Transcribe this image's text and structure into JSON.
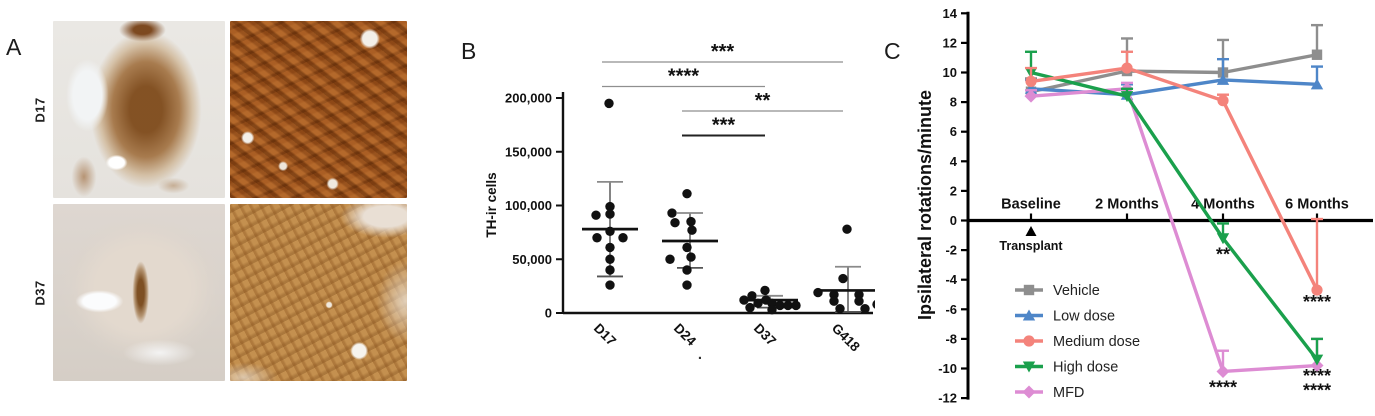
{
  "panels": {
    "a": {
      "label": "A",
      "rows": [
        {
          "label": "D17"
        },
        {
          "label": "D37"
        }
      ]
    },
    "b": {
      "label": "B"
    },
    "c": {
      "label": "C"
    }
  },
  "chart_data": [
    {
      "panel": "B",
      "type": "scatter",
      "title": "",
      "ylabel": "TH-ir cells",
      "ylim": [
        0,
        200000
      ],
      "yticks": [
        0,
        50000,
        100000,
        150000,
        200000
      ],
      "ytick_labels": [
        "0",
        "50,000",
        "100,000",
        "150,000",
        "200,000"
      ],
      "categories": [
        "D17",
        "D24",
        "D37",
        "G418"
      ],
      "groups": [
        {
          "name": "D17",
          "mean": 78000,
          "err_low": 34000,
          "err_high": 122000,
          "points": [
            [
              -1,
              195000
            ],
            [
              0,
              99000
            ],
            [
              0,
              92000
            ],
            [
              -14,
              91000
            ],
            [
              0,
              76000
            ],
            [
              13,
              70000
            ],
            [
              -13,
              70000
            ],
            [
              0,
              61000
            ],
            [
              0,
              50000
            ],
            [
              0,
              40000
            ],
            [
              0,
              26000
            ]
          ]
        },
        {
          "name": "D24",
          "mean": 67000,
          "err_low": 42000,
          "err_high": 93000,
          "points": [
            [
              -3,
              111000
            ],
            [
              -18,
              93000
            ],
            [
              -15,
              84000
            ],
            [
              1,
              85000
            ],
            [
              2,
              77000
            ],
            [
              -3,
              61000
            ],
            [
              1,
              52000
            ],
            [
              -20,
              50000
            ],
            [
              -3,
              40000
            ],
            [
              -3,
              26000
            ]
          ]
        },
        {
          "name": "D37",
          "mean": 12000,
          "err_low": 5000,
          "err_high": 16000,
          "points": [
            [
              -5,
              21000
            ],
            [
              -18,
              16000
            ],
            [
              -26,
              12000
            ],
            [
              -12,
              9000
            ],
            [
              -4,
              12000
            ],
            [
              2,
              9000
            ],
            [
              10,
              7000
            ],
            [
              18,
              7000
            ],
            [
              26,
              7000
            ],
            [
              -20,
              5000
            ],
            [
              2,
              3000
            ]
          ]
        },
        {
          "name": "G418",
          "mean": 21000,
          "err_low": 1000,
          "err_high": 43000,
          "points": [
            [
              -1,
              78000
            ],
            [
              -5,
              32000
            ],
            [
              -30,
              19000
            ],
            [
              -14,
              17000
            ],
            [
              -14,
              11000
            ],
            [
              11,
              17000
            ],
            [
              11,
              11000
            ],
            [
              29,
              8000
            ],
            [
              -8,
              4000
            ],
            [
              17,
              4000
            ]
          ]
        }
      ],
      "significance": [
        {
          "from": 0,
          "to": 3,
          "label": "***"
        },
        {
          "from": 0,
          "to": 2,
          "label": "****"
        },
        {
          "from": 1,
          "to": 3,
          "label": "**"
        },
        {
          "from": 1,
          "to": 2,
          "label": "***"
        }
      ],
      "stray_mark": "."
    },
    {
      "panel": "C",
      "type": "line",
      "title": "",
      "ylabel": "Ipsilateral rotations/minute",
      "ylim": [
        -12,
        14
      ],
      "yticks": [
        -12,
        -10,
        -8,
        -6,
        -4,
        -2,
        0,
        2,
        4,
        6,
        8,
        10,
        12,
        14
      ],
      "categories": [
        "Baseline",
        "2 Months",
        "4 Months",
        "6 Months"
      ],
      "transplant_label": "Transplant",
      "legend_position": "bottom-left-inside",
      "series": [
        {
          "name": "Vehicle",
          "color": "#8e8e8e",
          "marker": "square",
          "values": [
            8.7,
            10.1,
            10.0,
            11.2
          ],
          "err_up": [
            0.9,
            2.2,
            2.2,
            2.0
          ]
        },
        {
          "name": "Low dose",
          "color": "#4e86c8",
          "marker": "triangle-up",
          "values": [
            8.9,
            8.5,
            9.5,
            9.2
          ],
          "err_up": [
            0.6,
            0.7,
            1.4,
            1.2
          ]
        },
        {
          "name": "Medium dose",
          "color": "#f4837b",
          "marker": "circle",
          "values": [
            9.4,
            10.3,
            8.1,
            -4.7
          ],
          "err_up": [
            0.9,
            1.1,
            0.4,
            4.8
          ]
        },
        {
          "name": "High dose",
          "color": "#1aa04c",
          "marker": "triangle-down",
          "values": [
            10.0,
            8.4,
            -1.2,
            -9.4
          ],
          "err_up": [
            1.4,
            0.5,
            1.0,
            1.4
          ]
        },
        {
          "name": "MFD",
          "color": "#dd8cd3",
          "marker": "diamond",
          "values": [
            8.4,
            8.9,
            -10.2,
            -9.8
          ],
          "err_up": [
            0.4,
            0.4,
            1.4,
            1.8
          ]
        }
      ],
      "annotations": [
        {
          "xi": 2,
          "y": -2.7,
          "label": "**"
        },
        {
          "xi": 3,
          "y": -5.9,
          "label": "****"
        },
        {
          "xi": 2,
          "y": -11.7,
          "label": "****"
        },
        {
          "xi": 3,
          "y": -10.9,
          "label": "****"
        },
        {
          "xi": 3,
          "y": -11.9,
          "label": "****"
        }
      ]
    }
  ]
}
